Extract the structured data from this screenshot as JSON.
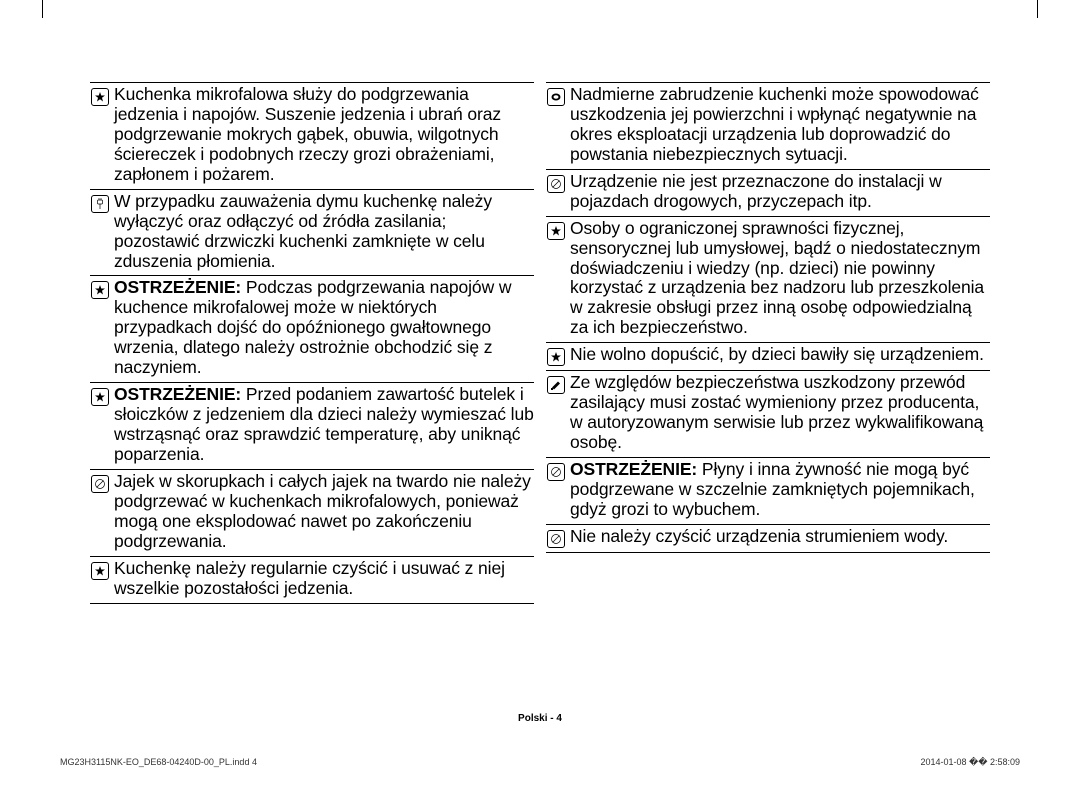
{
  "icons": {
    "star": "★",
    "plug": "◐",
    "prohibit": "⃠",
    "note": "☛",
    "service": "✎"
  },
  "left_rows": [
    {
      "icon": "star",
      "html": "Kuchenka mikrofalowa służy do podgrzewania jedzenia i napojów. Suszenie jedzenia i ubrań oraz podgrzewanie mokrych gąbek, obuwia, wilgotnych ściereczek i podobnych rzeczy grozi obrażeniami, zapłonem i pożarem."
    },
    {
      "icon": "plug",
      "html": "W przypadku zauważenia dymu kuchenkę należy wyłączyć oraz odłączyć od źródła zasilania; pozostawić drzwiczki kuchenki zamknięte w celu zduszenia płomienia."
    },
    {
      "icon": "star",
      "html": "<b>OSTRZEŻENIE:</b> Podczas podgrzewania napojów w kuchence mikrofalowej może w niektórych przypadkach dojść do opóźnionego gwałtownego wrzenia, dlatego należy ostrożnie obchodzić się z naczyniem."
    },
    {
      "icon": "star",
      "html": "<b>OSTRZEŻENIE:</b> Przed podaniem zawartość butelek i słoiczków z jedzeniem dla dzieci należy wymieszać lub wstrząsnąć oraz sprawdzić temperaturę, aby uniknąć poparzenia."
    },
    {
      "icon": "prohibit",
      "html": "Jajek w skorupkach i całych jajek na twardo nie należy podgrzewać w kuchenkach mikrofalowych, ponieważ mogą one eksplodować nawet po zakończeniu podgrzewania."
    },
    {
      "icon": "star",
      "html": "Kuchenkę należy regularnie czyścić i usuwać z niej wszelkie pozostałości jedzenia."
    }
  ],
  "right_rows": [
    {
      "icon": "note",
      "html": "Nadmierne zabrudzenie kuchenki może spowodować uszkodzenia jej powierzchni i wpłynąć negatywnie na okres eksploatacji urządzenia lub doprowadzić do powstania niebezpiecznych sytuacji."
    },
    {
      "icon": "prohibit",
      "html": "Urządzenie nie jest przeznaczone do instalacji w pojazdach drogowych, przyczepach itp."
    },
    {
      "icon": "star",
      "html": "Osoby o ograniczonej sprawności fizycznej, sensorycznej lub umysłowej, bądź o niedostatecznym doświadczeniu i wiedzy (np. dzieci) nie powinny korzystać z urządzenia bez nadzoru lub przeszkolenia w zakresie obsługi przez inną osobę odpowiedzialną za ich bezpieczeństwo."
    },
    {
      "icon": "star",
      "html": "Nie wolno dopuścić, by dzieci bawiły się urządzeniem."
    },
    {
      "icon": "service",
      "html": "Ze względów bezpieczeństwa uszkodzony przewód zasilający musi zostać wymieniony przez producenta, w autoryzowanym serwisie lub przez wykwalifikowaną osobę."
    },
    {
      "icon": "prohibit",
      "html": "<b>OSTRZEŻENIE:</b> Płyny i inna żywność nie mogą być podgrzewane w szczelnie zamkniętych pojemnikach, gdyż grozi to wybuchem."
    },
    {
      "icon": "prohibit",
      "html": "Nie należy czyścić urządzenia strumieniem wody."
    }
  ],
  "footer": {
    "center": "Polski - 4",
    "left": "MG23H3115NK-EO_DE68-04240D-00_PL.indd   4",
    "right": "2014-01-08   �� 2:58:09"
  }
}
